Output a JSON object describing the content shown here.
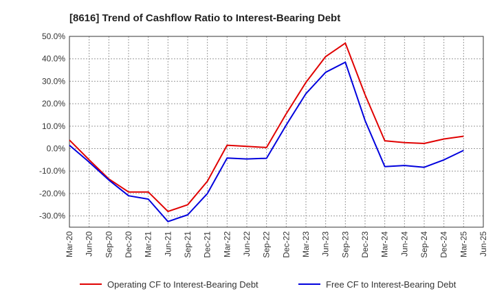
{
  "chart_data": {
    "type": "line",
    "title": "[8616]  Trend of Cashflow Ratio to Interest-Bearing Debt",
    "xlabel": "",
    "ylabel": "",
    "ylim": [
      -35,
      50
    ],
    "y_ticks": [
      50,
      40,
      30,
      20,
      10,
      0,
      -10,
      -20,
      -30
    ],
    "y_tick_labels": [
      "50.0%",
      "40.0%",
      "30.0%",
      "20.0%",
      "10.0%",
      "0.0%",
      "-10.0%",
      "-20.0%",
      "-30.0%"
    ],
    "x_tick_labels": [
      "Mar-20",
      "Jun-20",
      "Sep-20",
      "Dec-20",
      "Mar-21",
      "Jun-21",
      "Sep-21",
      "Dec-21",
      "Mar-22",
      "Jun-22",
      "Sep-22",
      "Dec-22",
      "Mar-23",
      "Jun-23",
      "Sep-23",
      "Dec-23",
      "Mar-24",
      "Jun-24",
      "Sep-24",
      "Dec-24",
      "Mar-25",
      "Jun-25"
    ],
    "grid": true,
    "legend_position": "bottom",
    "series": [
      {
        "name": "Operating CF to Interest-Bearing Debt",
        "color": "#e00000",
        "values": [
          3.8,
          -5.0,
          -13.5,
          -19.3,
          -19.3,
          -28.0,
          -25.0,
          -14.5,
          1.5,
          1.0,
          0.5,
          15.5,
          29.5,
          41.0,
          47.0,
          24.0,
          3.5,
          2.7,
          2.3,
          4.3,
          5.5
        ]
      },
      {
        "name": "Free CF to Interest-Bearing Debt",
        "color": "#0000dd",
        "values": [
          1.5,
          -6.0,
          -14.0,
          -21.0,
          -22.5,
          -32.5,
          -29.5,
          -20.0,
          -4.2,
          -4.6,
          -4.3,
          10.5,
          24.5,
          34.0,
          38.5,
          12.5,
          -8.0,
          -7.5,
          -8.3,
          -5.0,
          -0.8
        ]
      }
    ]
  }
}
